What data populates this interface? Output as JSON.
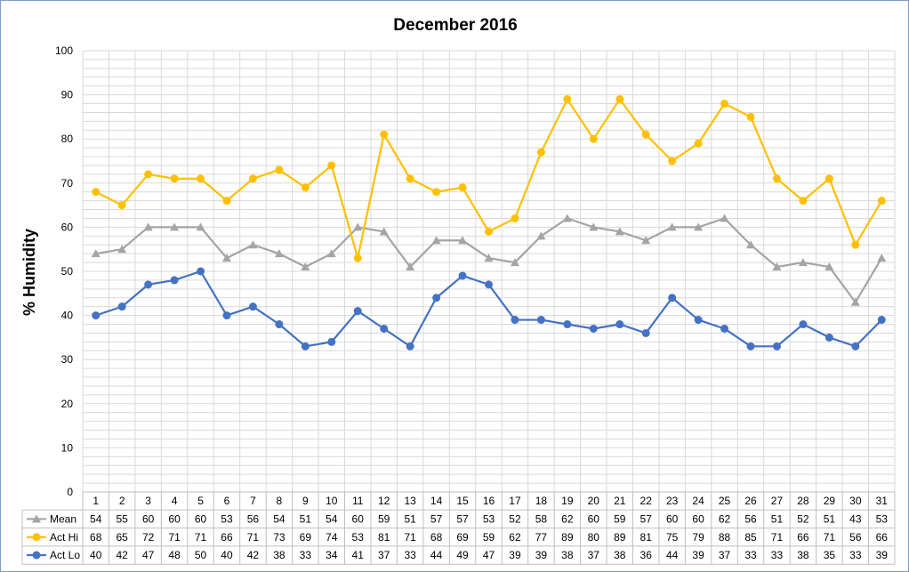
{
  "chart_data": {
    "type": "line",
    "title": "December 2016",
    "xlabel": "",
    "ylabel": "% Humidity",
    "ylim": [
      0,
      100
    ],
    "ytick_step": 10,
    "yticks": [
      "0",
      "10",
      "20",
      "30",
      "40",
      "50",
      "60",
      "70",
      "80",
      "90",
      "100"
    ],
    "minor_grid_step": 2,
    "grid": true,
    "legend_placement": "data-table",
    "categories": [
      "1",
      "2",
      "3",
      "4",
      "5",
      "6",
      "7",
      "8",
      "9",
      "10",
      "11",
      "12",
      "13",
      "14",
      "15",
      "16",
      "17",
      "18",
      "19",
      "20",
      "21",
      "22",
      "23",
      "24",
      "25",
      "26",
      "27",
      "28",
      "29",
      "30",
      "31"
    ],
    "series": [
      {
        "name": "Mean",
        "color": "#a5a5a5",
        "marker": "triangle",
        "values": [
          54,
          55,
          60,
          60,
          60,
          53,
          56,
          54,
          51,
          54,
          60,
          59,
          51,
          57,
          57,
          53,
          52,
          58,
          62,
          60,
          59,
          57,
          60,
          60,
          62,
          56,
          51,
          52,
          51,
          43,
          53
        ]
      },
      {
        "name": "Act Hi",
        "color": "#ffc000",
        "marker": "circle",
        "values": [
          68,
          65,
          72,
          71,
          71,
          66,
          71,
          73,
          69,
          74,
          53,
          81,
          71,
          68,
          69,
          59,
          62,
          77,
          89,
          80,
          89,
          81,
          75,
          79,
          88,
          85,
          71,
          66,
          71,
          56,
          66
        ]
      },
      {
        "name": "Act Lo",
        "color": "#4472c4",
        "marker": "circle",
        "values": [
          40,
          42,
          47,
          48,
          50,
          40,
          42,
          38,
          33,
          34,
          41,
          37,
          33,
          44,
          49,
          47,
          39,
          39,
          38,
          37,
          38,
          36,
          44,
          39,
          37,
          33,
          33,
          38,
          35,
          33,
          39
        ]
      }
    ]
  }
}
